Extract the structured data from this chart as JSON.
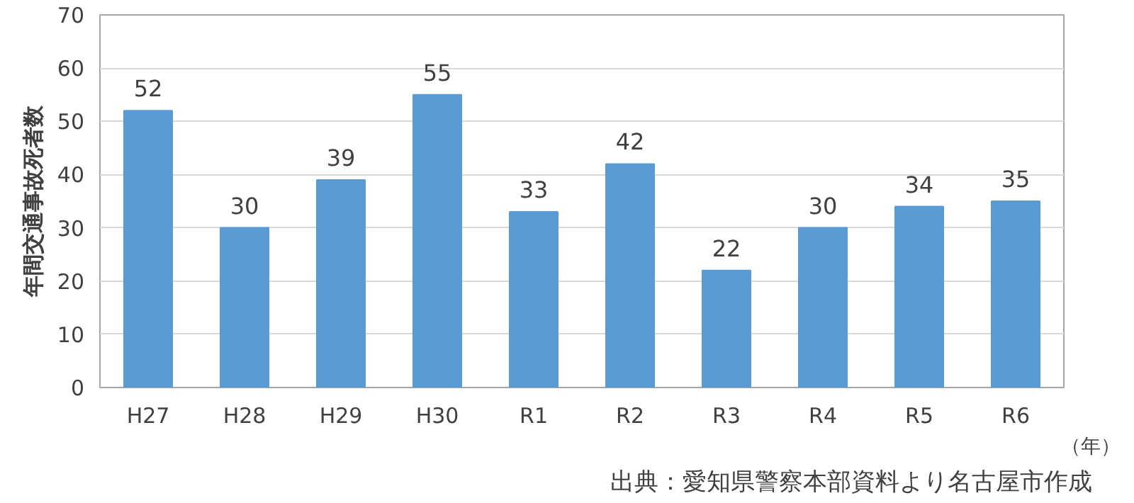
{
  "chart_data": {
    "type": "bar",
    "ylabel": "年間交通事故死者数",
    "categories": [
      "H27",
      "H28",
      "H29",
      "H30",
      "R1",
      "R2",
      "R3",
      "R4",
      "R5",
      "R6"
    ],
    "values": [
      52,
      30,
      39,
      55,
      33,
      42,
      22,
      30,
      34,
      35
    ],
    "color": "#5b9bd5",
    "ylim": [
      0,
      70
    ],
    "yticks": [
      0,
      10,
      20,
      30,
      40,
      50,
      60,
      70
    ],
    "grid": "y",
    "data_labels": true,
    "annotations": [
      "（年）",
      "出典：愛知県警察本部資料より名古屋市作成"
    ]
  }
}
